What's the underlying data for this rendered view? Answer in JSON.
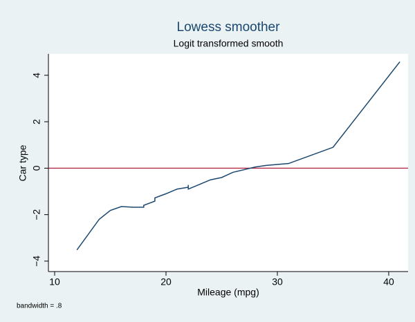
{
  "chart_data": {
    "type": "line",
    "title": "Lowess smoother",
    "subtitle": "Logit transformed smooth",
    "x_label": "Mileage (mpg)",
    "y_label": "Car type",
    "note": "bandwidth = .8",
    "x": [
      12,
      14,
      15,
      16,
      17,
      18,
      18,
      19,
      19,
      20,
      21,
      22,
      22,
      22,
      23,
      24,
      25,
      26,
      28,
      29,
      31,
      35,
      41
    ],
    "series": [
      {
        "name": "Car type",
        "color": "#1a476f",
        "values": [
          -3.52,
          -2.2,
          -1.82,
          -1.65,
          -1.68,
          -1.68,
          -1.6,
          -1.42,
          -1.28,
          -1.1,
          -0.9,
          -0.82,
          -0.72,
          -0.9,
          -0.7,
          -0.5,
          -0.4,
          -0.18,
          0.05,
          0.12,
          0.2,
          0.9,
          4.58
        ]
      }
    ],
    "reference_line": {
      "value": 0,
      "color": "#b0203c"
    },
    "xlim": [
      9.44,
      41.74
    ],
    "xticks": [
      10,
      20,
      30,
      40
    ],
    "ylim": [
      -4.45,
      4.92
    ],
    "yticks": [
      {
        "value": -4,
        "label": "−4"
      },
      {
        "value": -2,
        "label": "−2"
      },
      0,
      2,
      4
    ],
    "grid": false
  }
}
